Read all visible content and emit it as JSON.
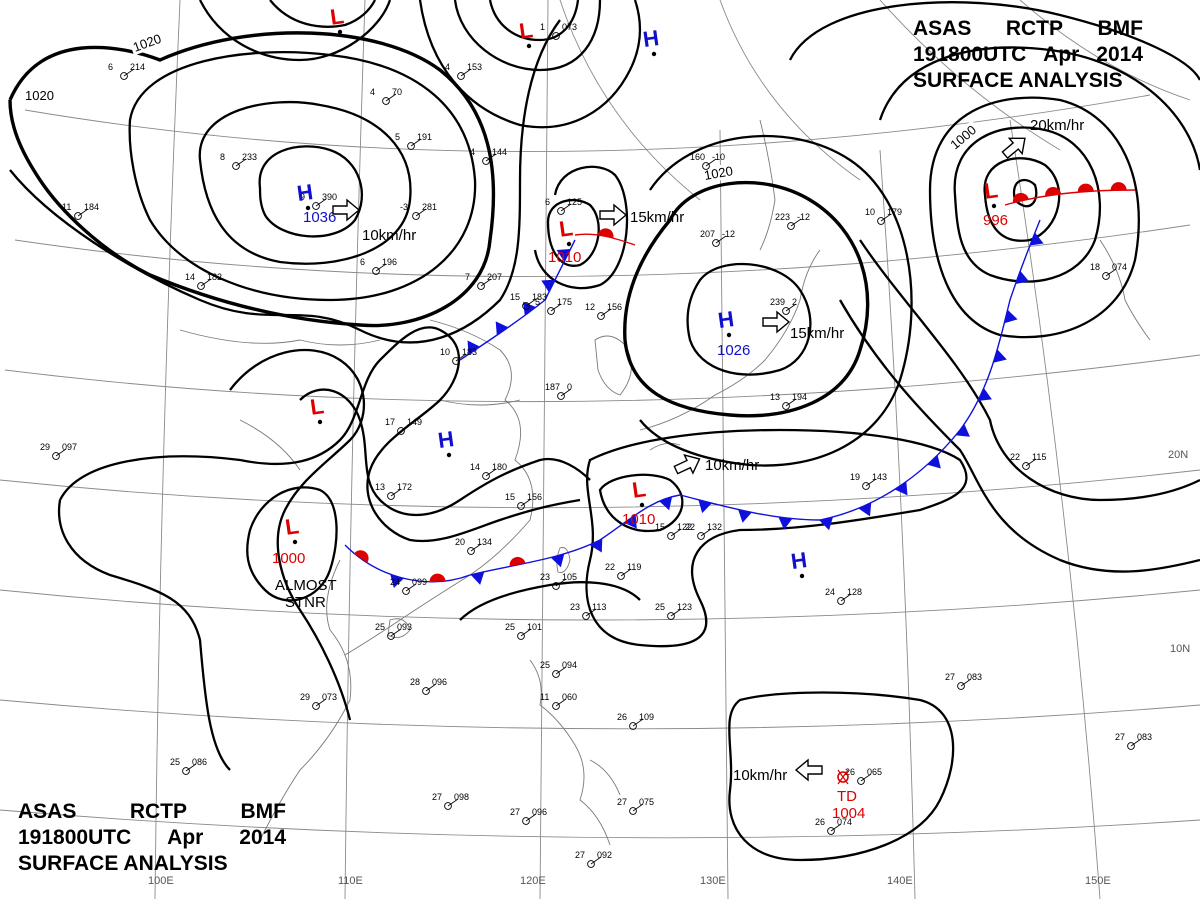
{
  "header": {
    "agency_line": [
      "ASAS",
      "RCTP",
      "BMF"
    ],
    "time_line": [
      "191800UTC",
      "Apr",
      "2014"
    ],
    "product": "SURFACE ANALYSIS"
  },
  "colors": {
    "isobar": "#000000",
    "high": "#1010cc",
    "low": "#dd0000",
    "cold_front": "#1010dd",
    "warm_front": "#dd0000",
    "grid": "#8a8a8a"
  },
  "isobar_labels": [
    "1020",
    "1020",
    "1020",
    "1000"
  ],
  "pressure_centers": [
    {
      "type": "H",
      "symbol": "H",
      "value": "1036",
      "motion": "10km/hr"
    },
    {
      "type": "H",
      "symbol": "H",
      "value": "1026",
      "motion": "15km/hr"
    },
    {
      "type": "H",
      "symbol": "H",
      "value": "",
      "motion": ""
    },
    {
      "type": "H",
      "symbol": "H",
      "value": "",
      "motion": ""
    },
    {
      "type": "H",
      "symbol": "H",
      "value": "",
      "motion": ""
    },
    {
      "type": "L",
      "symbol": "L",
      "value": "1010",
      "motion": "15km/hr"
    },
    {
      "type": "L",
      "symbol": "L",
      "value": "1010",
      "motion": "10km/hr"
    },
    {
      "type": "L",
      "symbol": "L",
      "value": "1000",
      "motion": ""
    },
    {
      "type": "L",
      "symbol": "L",
      "value": "996",
      "motion": "20km/hr"
    },
    {
      "type": "L",
      "symbol": "L",
      "value": "",
      "motion": ""
    },
    {
      "type": "L",
      "symbol": "L",
      "value": "",
      "motion": ""
    },
    {
      "type": "L",
      "symbol": "L",
      "value": "",
      "motion": ""
    },
    {
      "type": "TD",
      "symbol": "TD",
      "value": "1004",
      "motion": "10km/hr"
    }
  ],
  "annotations": [
    "ALMOST",
    "STNR"
  ],
  "grid_labels": {
    "longitudes": [
      "100E",
      "110E",
      "120E",
      "130E",
      "140E",
      "150E"
    ],
    "latitudes": [
      "20N",
      "10N"
    ]
  },
  "station_plots": [
    {
      "temp": "9",
      "pressure": "390"
    },
    {
      "temp": "8",
      "pressure": "233"
    },
    {
      "temp": "6",
      "pressure": "214"
    },
    {
      "temp": "11",
      "pressure": "184"
    },
    {
      "temp": "14",
      "pressure": "182"
    },
    {
      "temp": "6",
      "pressure": "196"
    },
    {
      "temp": "-3",
      "pressure": "281"
    },
    {
      "temp": "7",
      "pressure": "207"
    },
    {
      "temp": "4",
      "pressure": "153"
    },
    {
      "temp": "4",
      "pressure": "70"
    },
    {
      "temp": "5",
      "pressure": "191"
    },
    {
      "temp": "4",
      "pressure": "144"
    },
    {
      "temp": "1",
      "pressure": "073"
    },
    {
      "temp": "6",
      "pressure": "125"
    },
    {
      "temp": "15",
      "pressure": "183"
    },
    {
      "temp": "12",
      "pressure": "156"
    },
    {
      "temp": "5",
      "pressure": "175"
    },
    {
      "temp": "10",
      "pressure": "183"
    },
    {
      "temp": "17",
      "pressure": "149"
    },
    {
      "temp": "14",
      "pressure": "180"
    },
    {
      "temp": "13",
      "pressure": "172"
    },
    {
      "temp": "15",
      "pressure": "156"
    },
    {
      "temp": "20",
      "pressure": "134"
    },
    {
      "temp": "23",
      "pressure": "105"
    },
    {
      "temp": "23",
      "pressure": "113"
    },
    {
      "temp": "24",
      "pressure": "099"
    },
    {
      "temp": "29",
      "pressure": "097"
    },
    {
      "temp": "25",
      "pressure": "093"
    },
    {
      "temp": "28",
      "pressure": "096"
    },
    {
      "temp": "29",
      "pressure": "073"
    },
    {
      "temp": "25",
      "pressure": "086"
    },
    {
      "temp": "25",
      "pressure": "101"
    },
    {
      "temp": "25",
      "pressure": "094"
    },
    {
      "temp": "11",
      "pressure": "060"
    },
    {
      "temp": "26",
      "pressure": "109"
    },
    {
      "temp": "27",
      "pressure": "098"
    },
    {
      "temp": "27",
      "pressure": "096"
    },
    {
      "temp": "27",
      "pressure": "092"
    },
    {
      "temp": "27",
      "pressure": "075"
    },
    {
      "temp": "25",
      "pressure": "123"
    },
    {
      "temp": "22",
      "pressure": "132"
    },
    {
      "temp": "22",
      "pressure": "119"
    },
    {
      "temp": "19",
      "pressure": "143"
    },
    {
      "temp": "22",
      "pressure": "115"
    },
    {
      "temp": "24",
      "pressure": "128"
    },
    {
      "temp": "27",
      "pressure": "083"
    },
    {
      "temp": "27",
      "pressure": "083"
    },
    {
      "temp": "26",
      "pressure": "074"
    },
    {
      "temp": "26",
      "pressure": "065"
    },
    {
      "temp": "160",
      "pressure": "-10"
    },
    {
      "temp": "223",
      "pressure": "-12"
    },
    {
      "temp": "207",
      "pressure": "-12"
    },
    {
      "temp": "10",
      "pressure": "179"
    },
    {
      "temp": "239",
      "pressure": "2"
    },
    {
      "temp": "18",
      "pressure": "074"
    },
    {
      "temp": "13",
      "pressure": "194"
    },
    {
      "temp": "187",
      "pressure": "0"
    },
    {
      "temp": "15",
      "pressure": "122"
    }
  ]
}
